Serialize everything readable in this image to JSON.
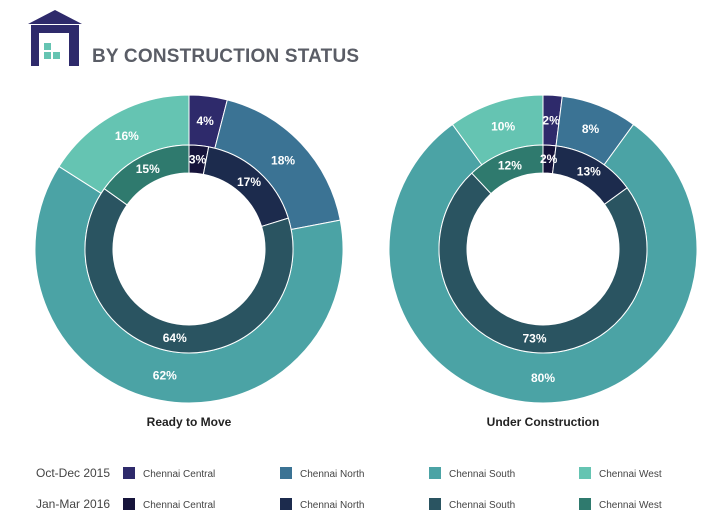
{
  "header": {
    "title": "BY CONSTRUCTION STATUS",
    "logo_icon": "building-icon"
  },
  "colors": {
    "outer": [
      "#2e2a6b",
      "#3b7394",
      "#4ba3a5",
      "#65c4b2"
    ],
    "inner": [
      "#16143b",
      "#1c2b4d",
      "#2a5461",
      "#2f7a6e"
    ],
    "logo": "#2e2a6b",
    "logo_accent": "#65c4b2"
  },
  "legend": {
    "rows": [
      {
        "period": "Oct-Dec 2015",
        "ring": "outer",
        "items": [
          "Chennai Central",
          "Chennai North",
          "Chennai South",
          "Chennai West"
        ]
      },
      {
        "period": "Jan-Mar 2016",
        "ring": "inner",
        "items": [
          "Chennai Central",
          "Chennai North",
          "Chennai South",
          "Chennai West"
        ]
      }
    ]
  },
  "chart_data": [
    {
      "type": "pie",
      "title": "Ready to Move",
      "categories": [
        "Chennai Central",
        "Chennai North",
        "Chennai South",
        "Chennai West"
      ],
      "series": [
        {
          "name": "Oct-Dec 2015",
          "ring": "outer",
          "values": [
            4,
            18,
            62,
            16
          ]
        },
        {
          "name": "Jan-Mar 2016",
          "ring": "inner",
          "values": [
            3,
            17,
            64,
            15
          ]
        }
      ],
      "labels": {
        "outer": [
          "4%",
          "18%",
          "62%",
          "16%"
        ],
        "inner": [
          "3%",
          "17%",
          "64%",
          "15%"
        ]
      }
    },
    {
      "type": "pie",
      "title": "Under Construction",
      "categories": [
        "Chennai Central",
        "Chennai North",
        "Chennai South",
        "Chennai West"
      ],
      "series": [
        {
          "name": "Oct-Dec 2015",
          "ring": "outer",
          "values": [
            2,
            8,
            80,
            10
          ]
        },
        {
          "name": "Jan-Mar 2016",
          "ring": "inner",
          "values": [
            2,
            13,
            73,
            12
          ]
        }
      ],
      "labels": {
        "outer": [
          "2%",
          "8%",
          "80%",
          "10%"
        ],
        "inner": [
          "2%",
          "13%",
          "73%",
          "12%"
        ]
      }
    }
  ]
}
